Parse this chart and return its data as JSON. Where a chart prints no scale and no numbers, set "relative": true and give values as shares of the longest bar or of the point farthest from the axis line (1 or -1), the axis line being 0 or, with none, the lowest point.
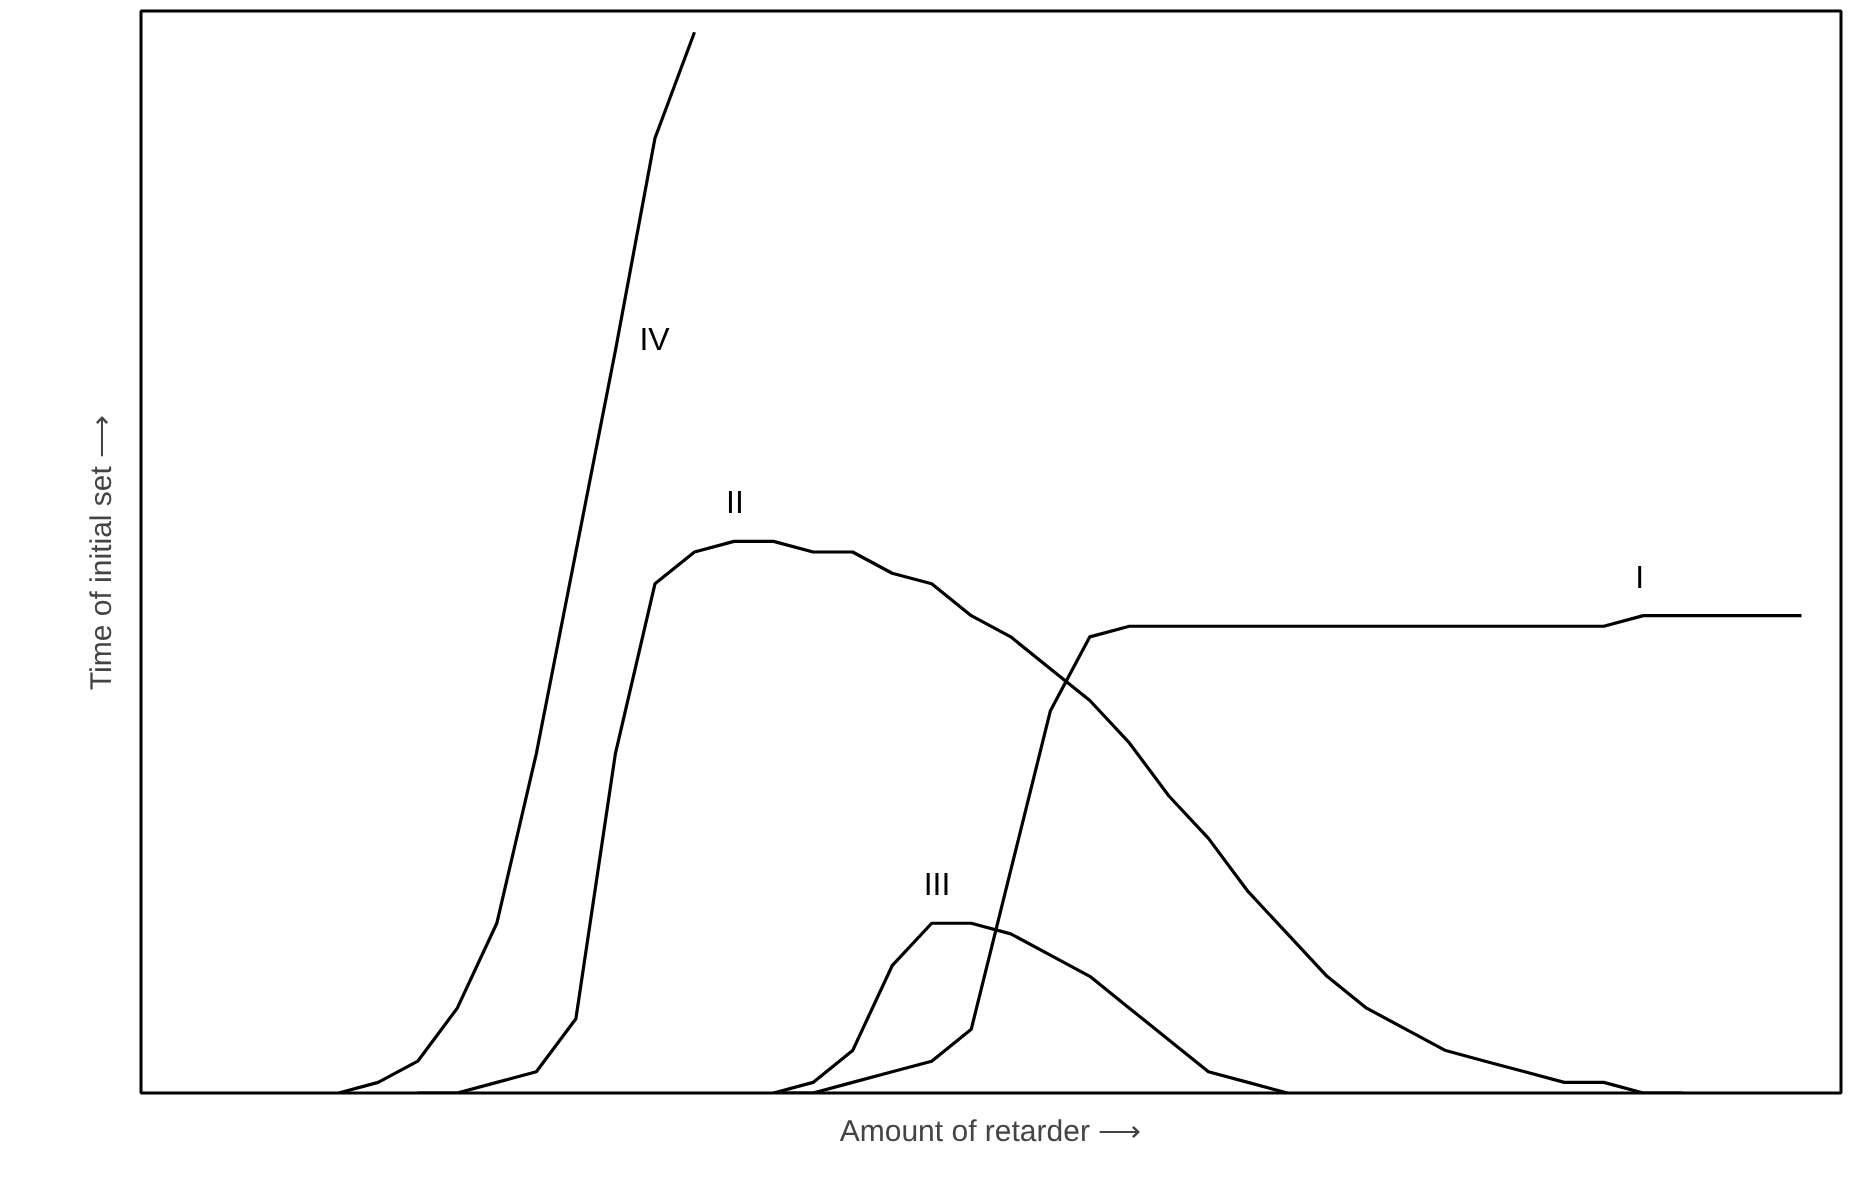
{
  "chart_data": {
    "type": "line",
    "relative": true,
    "xlabel": "Amount of retarder ⟶",
    "ylabel": "Time of initial set ⟶",
    "legend": false,
    "grid": false,
    "marker": "none",
    "line_style": "solid",
    "categories": [
      null,
      null,
      null,
      null,
      null,
      null,
      null,
      null,
      null,
      null,
      null,
      null,
      null,
      null,
      null,
      null,
      null,
      null,
      null,
      null,
      null,
      null,
      null,
      null,
      null,
      null,
      null,
      null,
      null,
      null,
      null,
      null,
      null,
      null,
      null,
      null,
      null,
      null,
      null,
      null,
      null,
      null,
      null
    ],
    "series": [
      {
        "name": "I",
        "color": "#000000",
        "values": [
          null,
          null,
          null,
          null,
          null,
          null,
          null,
          null,
          null,
          null,
          null,
          null,
          null,
          null,
          null,
          null,
          0,
          0,
          0.01,
          0.02,
          0.03,
          0.06,
          0.21,
          0.36,
          0.43,
          0.44,
          0.44,
          0.44,
          0.44,
          0.44,
          0.44,
          0.44,
          0.44,
          0.44,
          0.44,
          0.44,
          0.44,
          0.44,
          0.45,
          0.45,
          0.45,
          0.45,
          0.45
        ]
      },
      {
        "name": "II",
        "color": "#000000",
        "values": [
          null,
          null,
          null,
          null,
          null,
          null,
          null,
          0,
          0,
          0.01,
          0.02,
          0.07,
          0.32,
          0.48,
          0.51,
          0.52,
          0.52,
          0.51,
          0.51,
          0.49,
          0.48,
          0.45,
          0.43,
          0.4,
          0.37,
          0.33,
          0.28,
          0.24,
          0.19,
          0.15,
          0.11,
          0.08,
          0.06,
          0.04,
          0.03,
          0.02,
          0.01,
          0.01,
          0,
          0,
          null,
          null,
          null
        ]
      },
      {
        "name": "III",
        "color": "#000000",
        "values": [
          null,
          null,
          null,
          null,
          null,
          null,
          null,
          null,
          null,
          null,
          null,
          null,
          null,
          null,
          null,
          null,
          0,
          0.01,
          0.04,
          0.12,
          0.16,
          0.16,
          0.15,
          0.13,
          0.11,
          0.08,
          0.05,
          0.02,
          0.01,
          0,
          null,
          null,
          null,
          null,
          null,
          null,
          null,
          null,
          null,
          null,
          null,
          null,
          null
        ]
      },
      {
        "name": "IV",
        "color": "#000000",
        "values": [
          null,
          null,
          null,
          null,
          null,
          0,
          0.01,
          0.03,
          0.08,
          0.16,
          0.32,
          0.51,
          0.7,
          0.9,
          1.0,
          null,
          null,
          null,
          null,
          null,
          null,
          null,
          null,
          null,
          null,
          null,
          null,
          null,
          null,
          null,
          null,
          null,
          null,
          null,
          null,
          null,
          null,
          null,
          null,
          null,
          null,
          null,
          null
        ]
      }
    ]
  }
}
